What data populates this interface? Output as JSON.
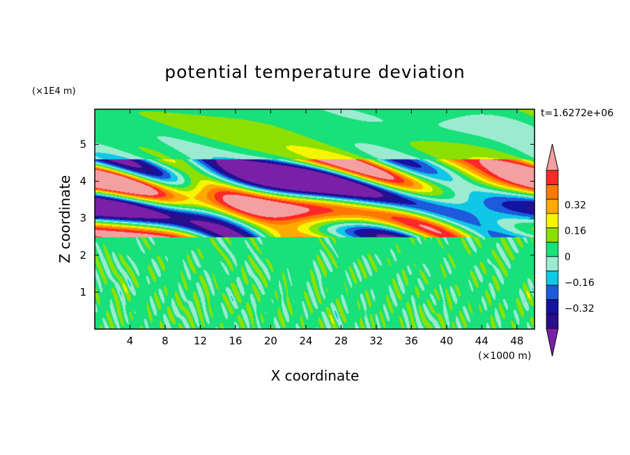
{
  "chart_data": {
    "type": "heatmap",
    "title": "potential temperature deviation",
    "time_label": "t=1.6272e+06",
    "xlabel": "X coordinate",
    "ylabel": "Z coordinate",
    "x_unit": "(×1000 m)",
    "y_unit": "(×1E4 m)",
    "xlim": [
      0,
      50
    ],
    "ylim": [
      0,
      5.95
    ],
    "x_ticks": [
      4,
      8,
      12,
      16,
      20,
      24,
      28,
      32,
      36,
      40,
      44,
      48
    ],
    "y_ticks": [
      1,
      2,
      3,
      4,
      5
    ],
    "x_tick_labels": [
      "4",
      "8",
      "12",
      "16",
      "20",
      "24",
      "28",
      "32",
      "36",
      "40",
      "44",
      "48"
    ],
    "y_tick_labels": [
      "1",
      "2",
      "3",
      "4",
      "5"
    ],
    "colorbar": {
      "levels": [
        -0.48,
        -0.4,
        -0.32,
        -0.24,
        -0.16,
        -0.08,
        0,
        0.08,
        0.16,
        0.24,
        0.32,
        0.4,
        0.48
      ],
      "tick_values": [
        0.32,
        0.16,
        0,
        -0.16,
        -0.32
      ],
      "tick_labels": [
        "0.32",
        "0.16",
        "0",
        "−0.16",
        "−0.32"
      ],
      "colors_low_to_high": [
        "#7a20a8",
        "#2a0f8c",
        "#1414a0",
        "#1e5adc",
        "#10c8e6",
        "#9aebd0",
        "#18e07a",
        "#8ce000",
        "#f5f500",
        "#ffaa00",
        "#ff7800",
        "#ff2828",
        "#f5a0a0"
      ],
      "extend": "both"
    },
    "field_description": {
      "lower_layer": {
        "z_range": [
          0,
          2.5
        ],
        "values": "small-scale noise between -0.08 and 0.08"
      },
      "mid_layer": {
        "z_range": [
          2.5,
          4.6
        ],
        "values": "strong waves between -0.48 and 0.48"
      },
      "upper_layer": {
        "z_range": [
          4.6,
          5.95
        ],
        "values": "weak smooth bands between -0.24 and 0.24"
      }
    }
  }
}
